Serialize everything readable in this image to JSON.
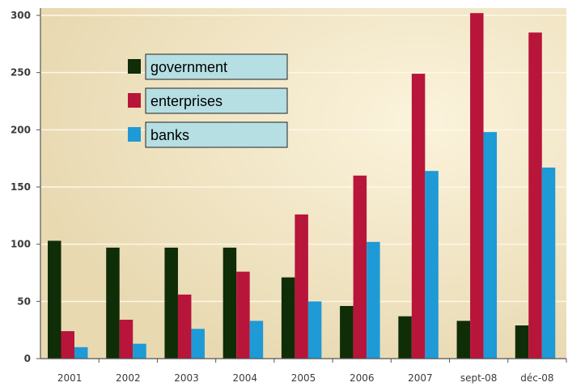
{
  "chart_data": {
    "type": "bar",
    "categories": [
      "2001",
      "2002",
      "2003",
      "2004",
      "2005",
      "2006",
      "2007",
      "sept-08",
      "déc-08"
    ],
    "series": [
      {
        "name": "government",
        "color": "#0f2d07",
        "values": [
          103,
          97,
          97,
          97,
          71,
          46,
          37,
          33,
          29
        ]
      },
      {
        "name": "enterprises",
        "color": "#b8153a",
        "values": [
          24,
          34,
          56,
          76,
          126,
          160,
          249,
          302,
          285
        ]
      },
      {
        "name": "banks",
        "color": "#1e9ad6",
        "values": [
          10,
          13,
          26,
          33,
          50,
          102,
          164,
          198,
          167
        ]
      }
    ],
    "yticks": [
      "0",
      "50",
      "100",
      "150",
      "200",
      "250",
      "300"
    ],
    "ylim": [
      0,
      300
    ],
    "grid": true,
    "legend_position": "top-left",
    "title": "",
    "xlabel": "",
    "ylabel": ""
  },
  "colors": {
    "background": "#eee2bf",
    "axis": "#555555",
    "gridline": "#fdf7e6",
    "legend_box": "#b5dfe3"
  }
}
